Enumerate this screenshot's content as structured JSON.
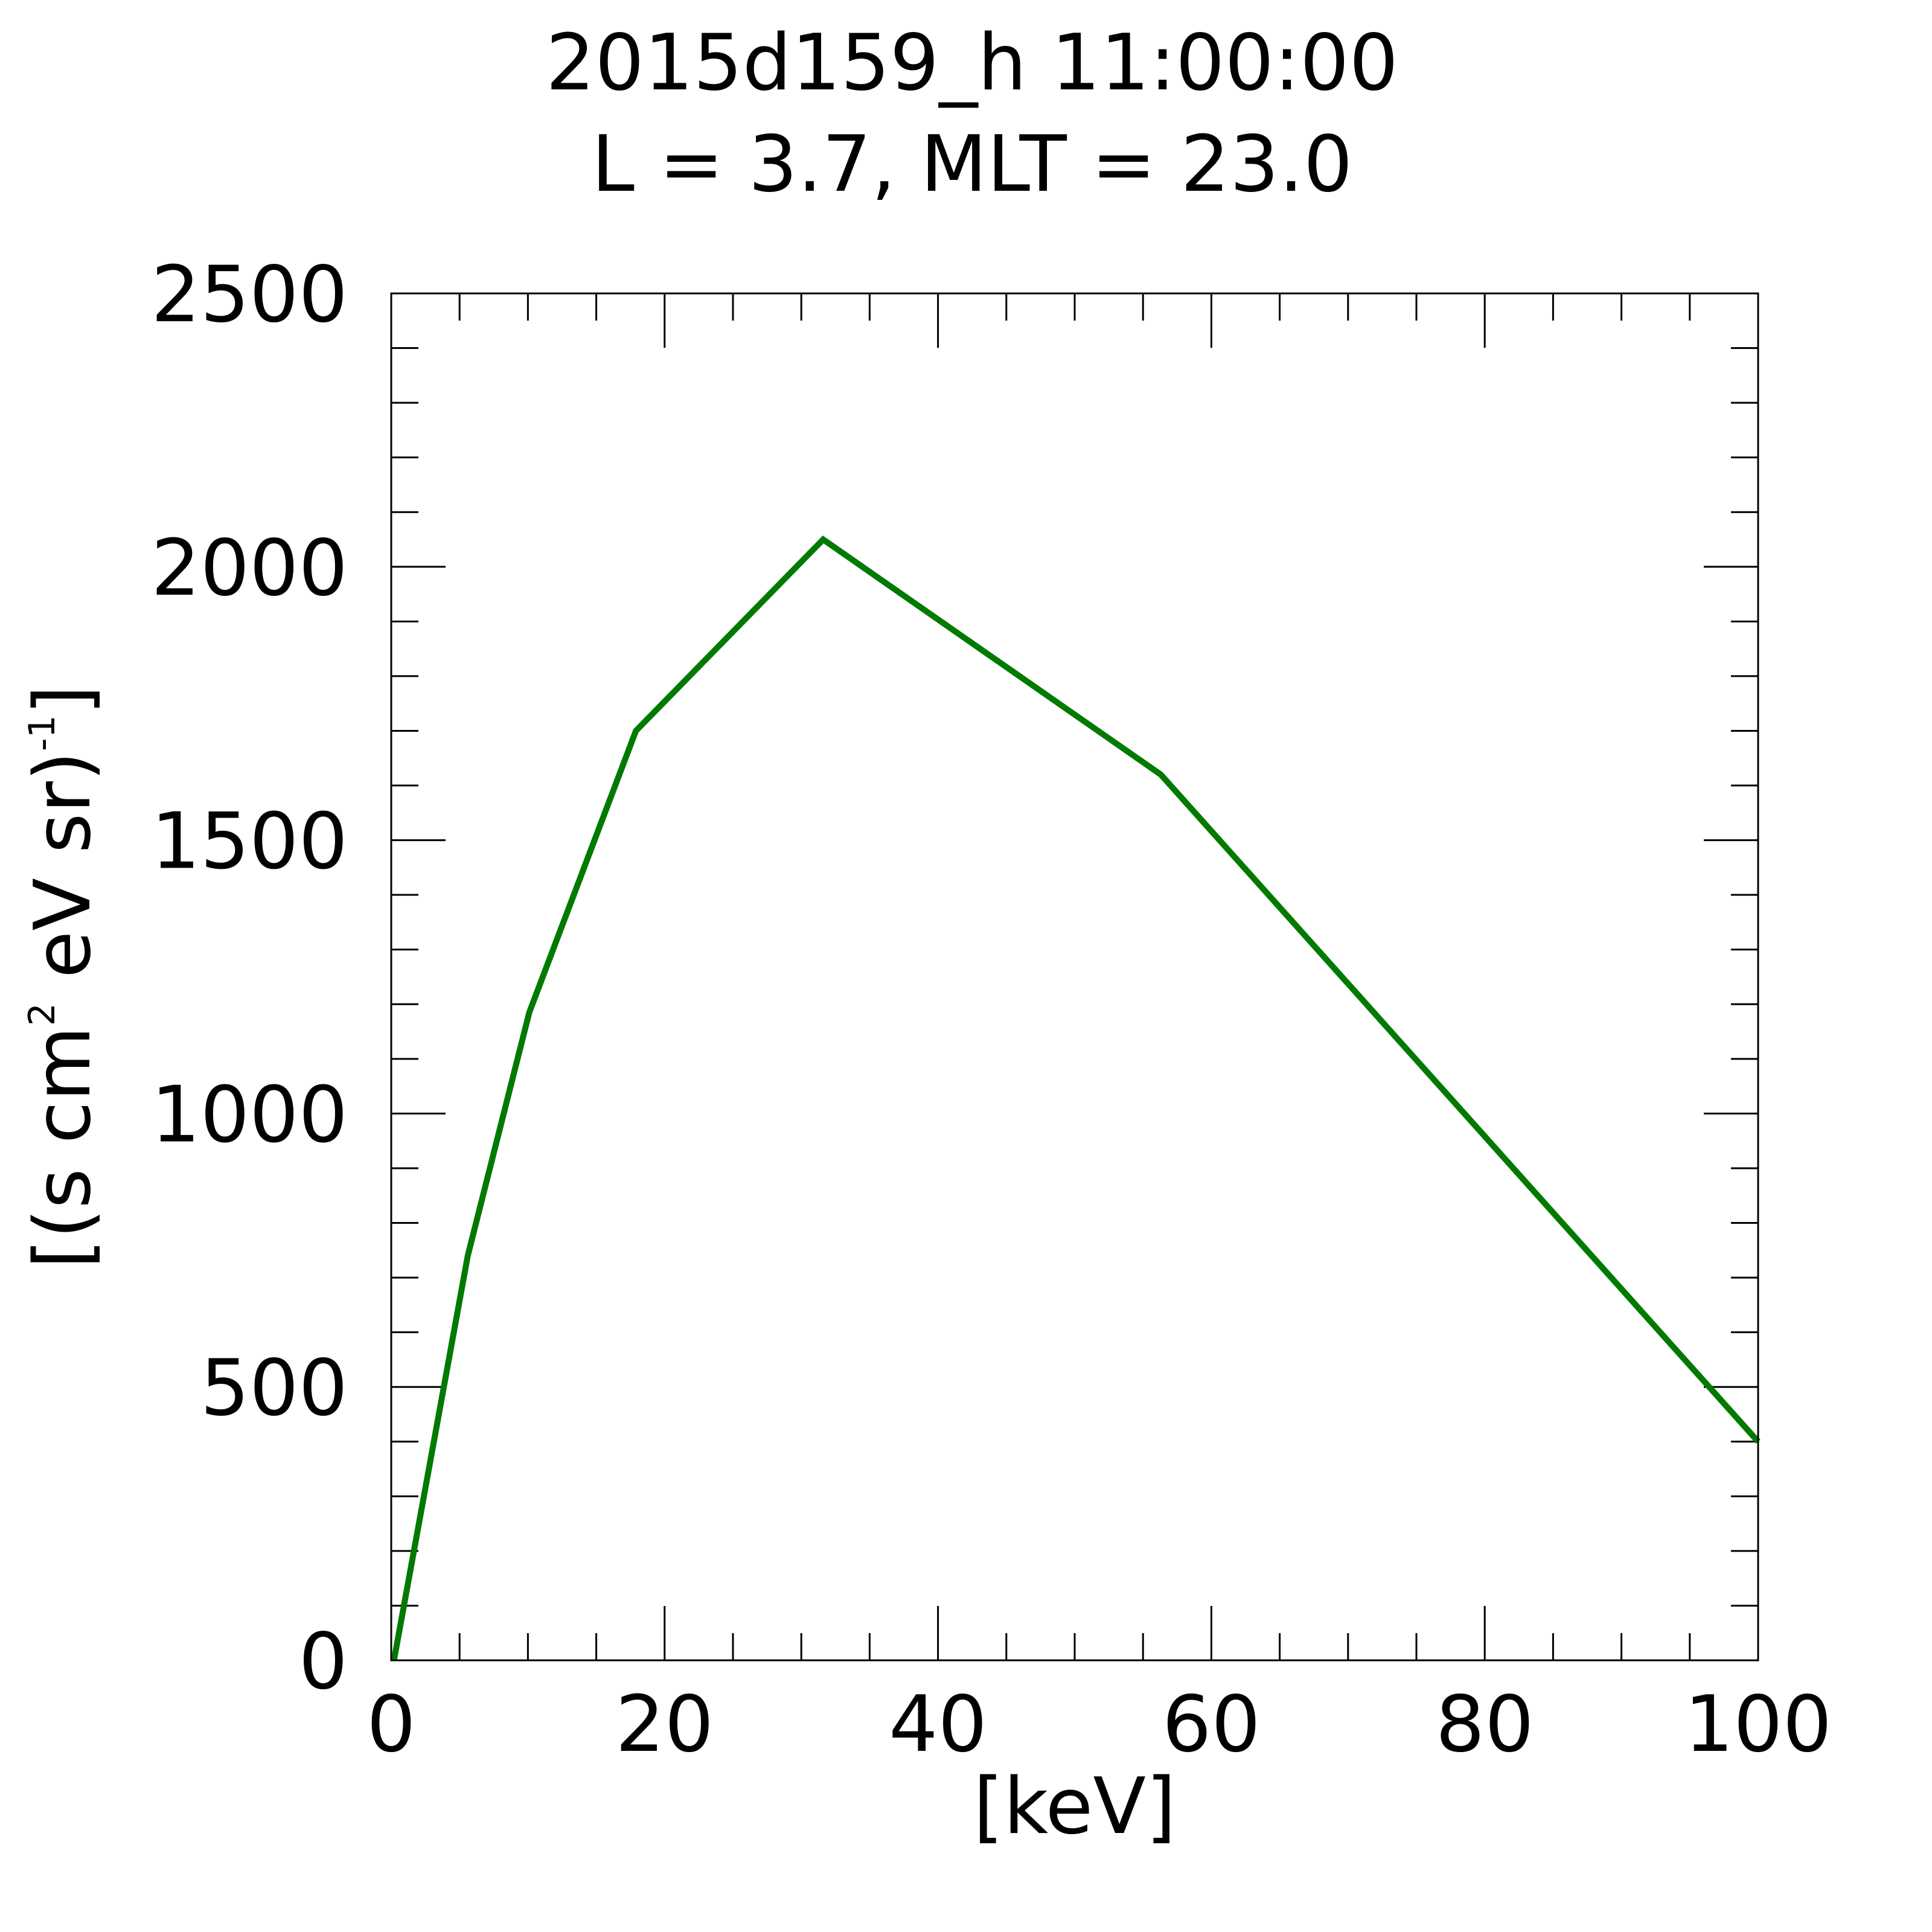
{
  "chart_data": {
    "type": "line",
    "title_line1": "2015d159_h  11:00:00",
    "title_line2": "L = 3.7, MLT = 23.0",
    "xlabel": "[keV]",
    "ylabel": {
      "pre": "[(s cm",
      "sup1": "2",
      "mid": " eV sr)",
      "sup2": "-1",
      "post": "]"
    },
    "xlim": [
      0,
      100
    ],
    "ylim": [
      0,
      2500
    ],
    "x_ticks": [
      0,
      20,
      40,
      60,
      80,
      100
    ],
    "y_ticks": [
      0,
      500,
      1000,
      1500,
      2000,
      2500
    ],
    "x_minor_step": 5,
    "y_minor_step": 100,
    "grid": false,
    "series": [
      {
        "color": "#007a00",
        "x": [
          0.2,
          5.6,
          10.1,
          17.9,
          31.6,
          56.3,
          100
        ],
        "y": [
          0,
          740,
          1185,
          1700,
          2050,
          1620,
          400
        ]
      }
    ]
  }
}
